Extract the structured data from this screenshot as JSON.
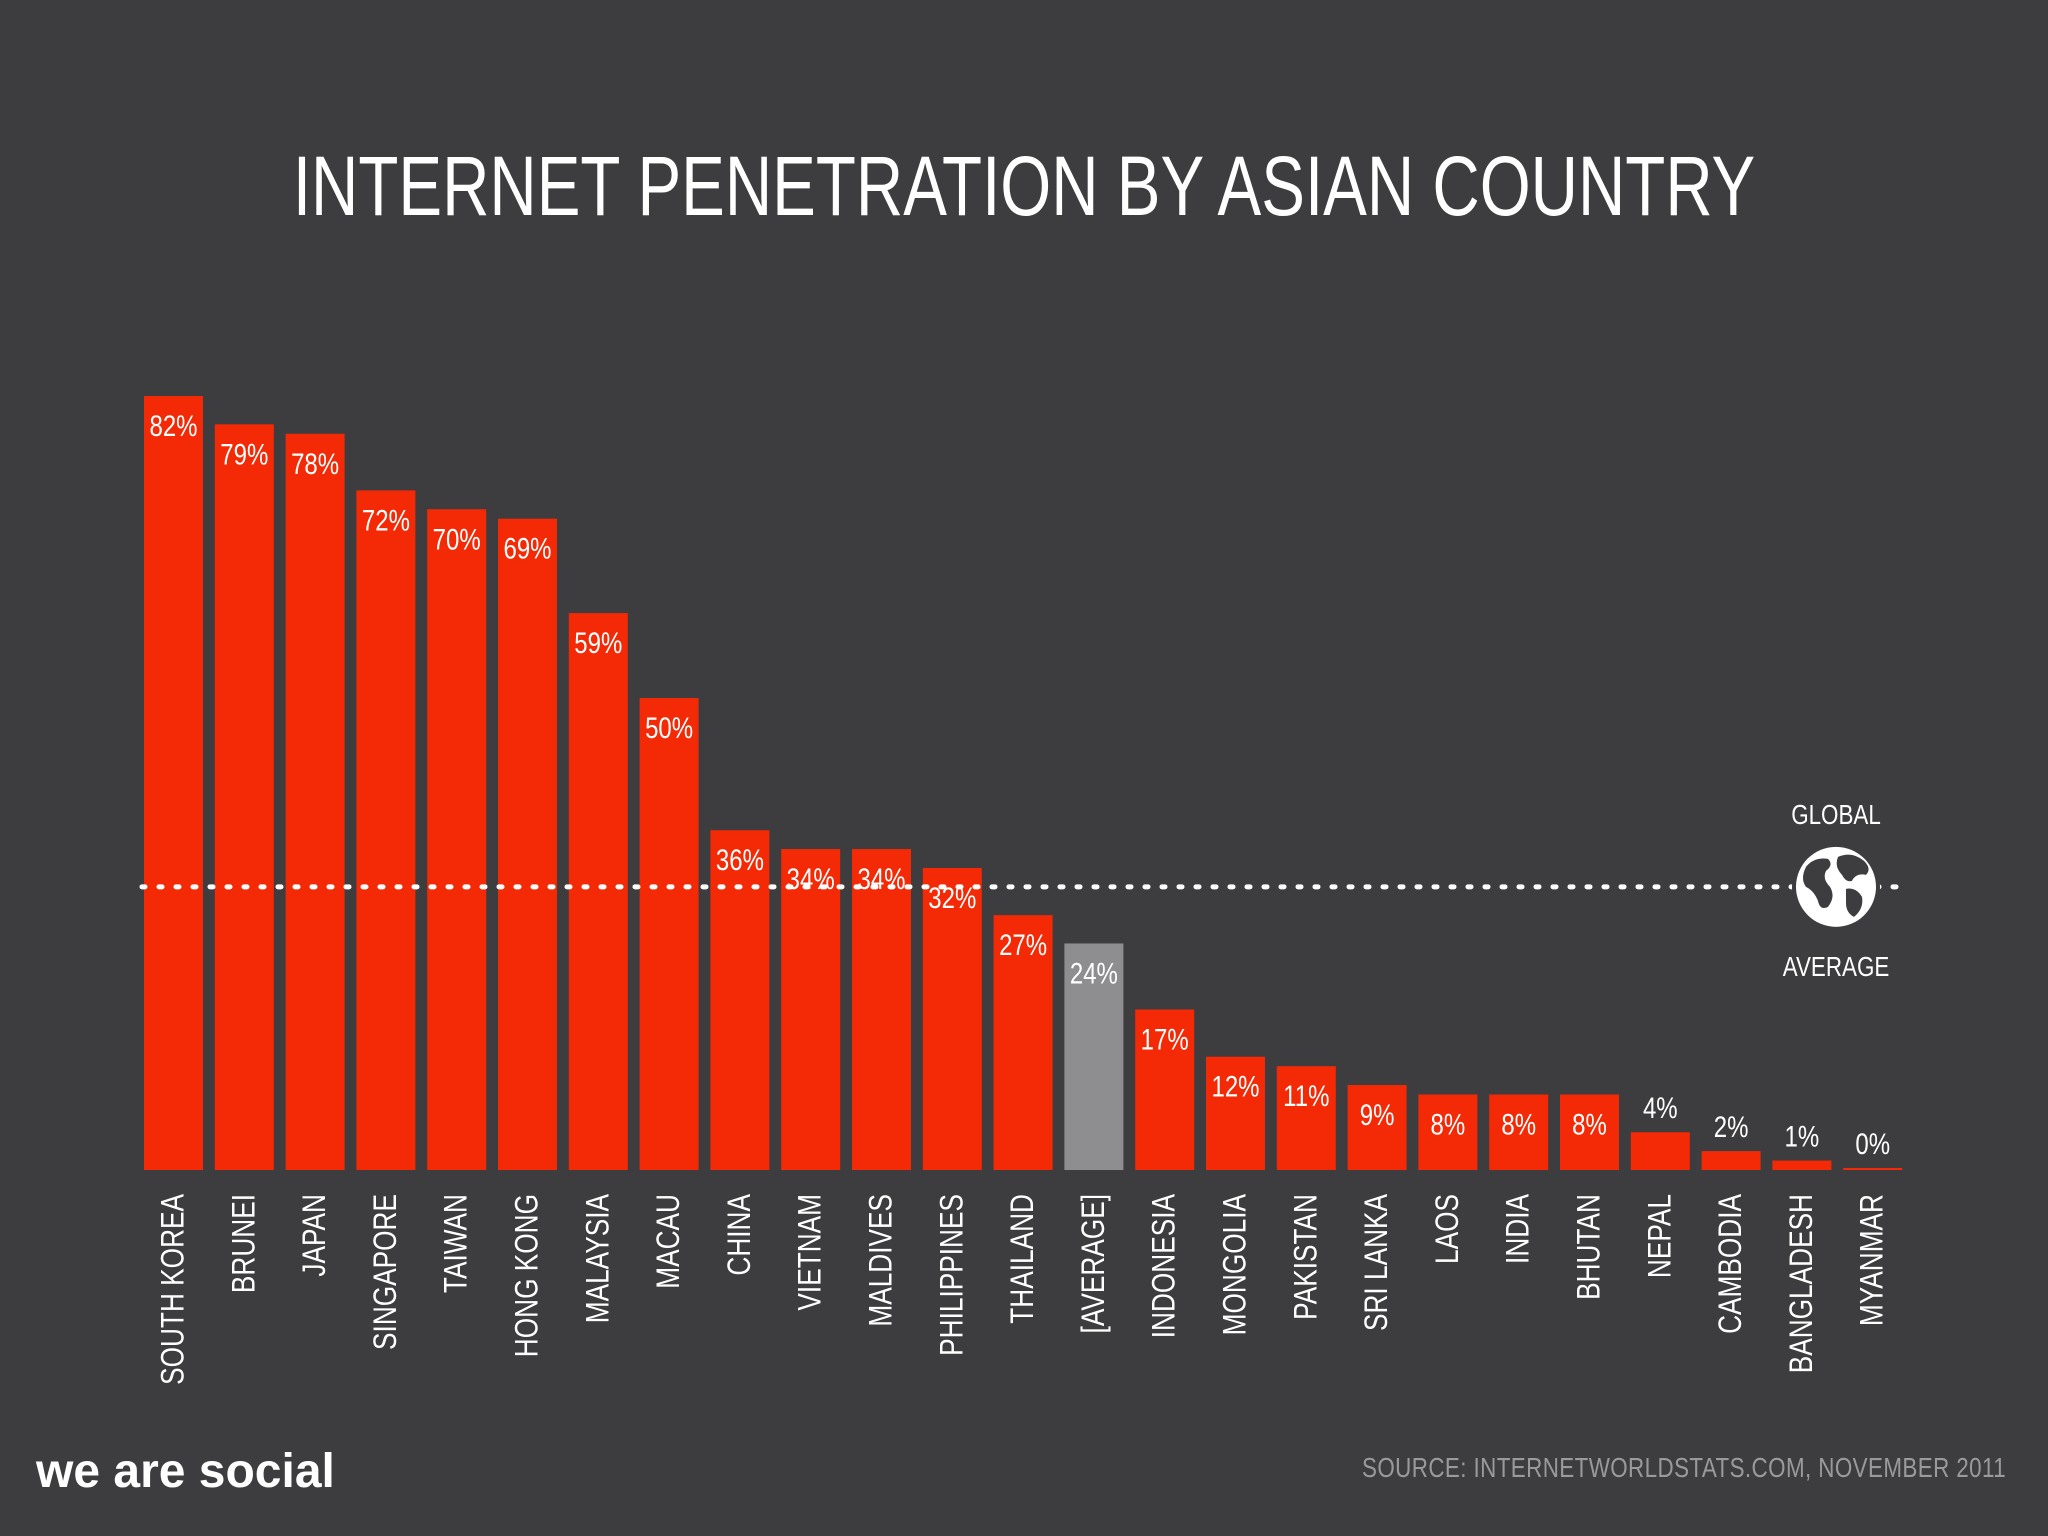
{
  "chart_data": {
    "type": "bar",
    "title": "INTERNET PENETRATION BY ASIAN COUNTRY",
    "categories": [
      "SOUTH KOREA",
      "BRUNEI",
      "JAPAN",
      "SINGAPORE",
      "TAIWAN",
      "HONG KONG",
      "MALAYSIA",
      "MACAU",
      "CHINA",
      "VIETNAM",
      "MALDIVES",
      "PHILIPPINES",
      "THAILAND",
      "[AVERAGE]",
      "INDONESIA",
      "MONGOLIA",
      "PAKISTAN",
      "SRI LANKA",
      "LAOS",
      "INDIA",
      "BHUTAN",
      "NEPAL",
      "CAMBODIA",
      "BANGLADESH",
      "MYANMAR"
    ],
    "values": [
      82,
      79,
      78,
      72,
      70,
      69,
      59,
      50,
      36,
      34,
      34,
      32,
      27,
      24,
      17,
      12,
      11,
      9,
      8,
      8,
      8,
      4,
      2,
      1,
      0
    ],
    "value_labels": [
      "82%",
      "79%",
      "78%",
      "72%",
      "70%",
      "69%",
      "59%",
      "50%",
      "36%",
      "34%",
      "34%",
      "32%",
      "27%",
      "24%",
      "17%",
      "12%",
      "11%",
      "9%",
      "8%",
      "8%",
      "8%",
      "4%",
      "2%",
      "1%",
      "0%"
    ],
    "highlight_category": "[AVERAGE]",
    "reference_line": {
      "value": 30,
      "label_top": "GLOBAL",
      "label_bottom": "AVERAGE"
    },
    "ylim": [
      0,
      82
    ],
    "grid": false,
    "legend": "none",
    "colors": {
      "bar": "#f42a06",
      "highlight": "#8e8d90",
      "background": "#3d3c3e",
      "text": "#ffffff"
    }
  },
  "footer": {
    "brand": "we are social",
    "source": "SOURCE: INTERNETWORLDSTATS.COM, NOVEMBER 2011"
  }
}
